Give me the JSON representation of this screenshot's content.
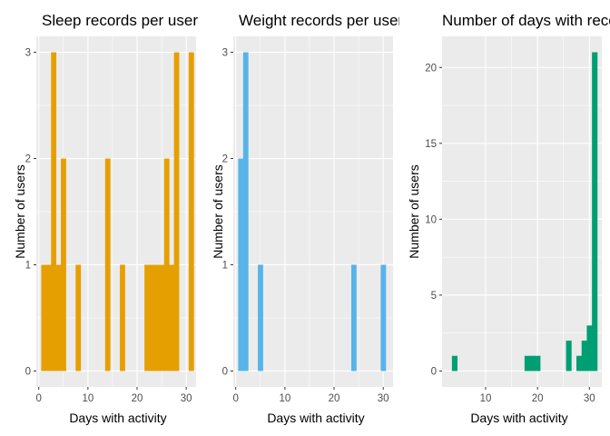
{
  "figure": {
    "background": "#ffffff",
    "panel_background": "#ebebeb",
    "grid_color": "#ffffff"
  },
  "chart_data": [
    {
      "type": "bar",
      "title": "Sleep records per user",
      "xlabel": "Days with activity",
      "ylabel": "Number of users",
      "color": "#E69F00",
      "binwidth": 1,
      "xlim": [
        -0.5,
        32
      ],
      "ylim": [
        -0.15,
        3.15
      ],
      "xticks": [
        0,
        10,
        20,
        30
      ],
      "yticks": [
        0,
        1,
        2,
        3
      ],
      "bins": [
        {
          "x": 1,
          "count": 1
        },
        {
          "x": 2,
          "count": 1
        },
        {
          "x": 3,
          "count": 3
        },
        {
          "x": 4,
          "count": 1
        },
        {
          "x": 5,
          "count": 2
        },
        {
          "x": 8,
          "count": 1
        },
        {
          "x": 14,
          "count": 2
        },
        {
          "x": 17,
          "count": 1
        },
        {
          "x": 22,
          "count": 1
        },
        {
          "x": 23,
          "count": 1
        },
        {
          "x": 24,
          "count": 1
        },
        {
          "x": 25,
          "count": 1
        },
        {
          "x": 26,
          "count": 2
        },
        {
          "x": 27,
          "count": 1
        },
        {
          "x": 28,
          "count": 3
        },
        {
          "x": 31,
          "count": 3
        }
      ],
      "grid": true
    },
    {
      "type": "bar",
      "title": "Weight records per user",
      "xlabel": "Days with activity",
      "ylabel": "Number of users",
      "color": "#56B4E9",
      "binwidth": 1,
      "xlim": [
        -0.5,
        32
      ],
      "ylim": [
        -0.15,
        3.15
      ],
      "xticks": [
        0,
        10,
        20,
        30
      ],
      "yticks": [
        0,
        1,
        2,
        3
      ],
      "bins": [
        {
          "x": 1,
          "count": 2
        },
        {
          "x": 2,
          "count": 3
        },
        {
          "x": 5,
          "count": 1
        },
        {
          "x": 24,
          "count": 1
        },
        {
          "x": 30,
          "count": 1
        }
      ],
      "grid": true
    },
    {
      "type": "bar",
      "title": "Number of days with recorded activity",
      "xlabel": "Days with activity",
      "ylabel": "Number of users",
      "color": "#009E73",
      "binwidth": 1,
      "xlim": [
        1.6,
        32.4
      ],
      "ylim": [
        -1.05,
        22.05
      ],
      "xticks": [
        10,
        20,
        30
      ],
      "yticks": [
        0,
        5,
        10,
        15,
        20
      ],
      "bins": [
        {
          "x": 4,
          "count": 1
        },
        {
          "x": 18,
          "count": 1
        },
        {
          "x": 19,
          "count": 1
        },
        {
          "x": 20,
          "count": 1
        },
        {
          "x": 26,
          "count": 2
        },
        {
          "x": 28,
          "count": 1
        },
        {
          "x": 29,
          "count": 2
        },
        {
          "x": 30,
          "count": 3
        },
        {
          "x": 31,
          "count": 21
        }
      ],
      "grid": true
    }
  ]
}
